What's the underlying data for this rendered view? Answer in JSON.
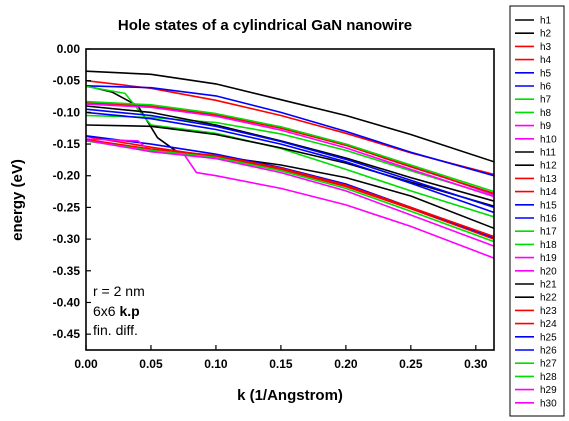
{
  "chart_data": {
    "type": "line",
    "title": "Hole states of a cylindrical GaN nanowire",
    "xlabel": "k (1/Angstrom)",
    "ylabel": "energy (eV)",
    "xlim": [
      0.0,
      0.314
    ],
    "ylim": [
      -0.475,
      0.0
    ],
    "x_ticks": [
      "0.00",
      "0.05",
      "0.10",
      "0.15",
      "0.20",
      "0.25",
      "0.30"
    ],
    "y_ticks": [
      "0.00",
      "-0.05",
      "-0.10",
      "-0.15",
      "-0.20",
      "-0.25",
      "-0.30",
      "-0.35",
      "-0.40",
      "-0.45"
    ],
    "grid": false,
    "legend_position": "right, outside plot",
    "annotation": {
      "line1": "r = 2 nm",
      "line2_prefix": "6x6 ",
      "line2_bold": "k.p",
      "line3": "fin. diff."
    },
    "series": [
      {
        "name": "h1",
        "color": "#000000",
        "x": [
          0.0,
          0.05,
          0.1,
          0.15,
          0.2,
          0.25,
          0.314
        ],
        "y": [
          -0.035,
          -0.04,
          -0.055,
          -0.08,
          -0.105,
          -0.135,
          -0.178
        ]
      },
      {
        "name": "h2",
        "color": "#000000",
        "x": [
          0.0,
          0.02,
          0.04,
          0.055,
          0.07,
          0.1,
          0.15,
          0.2,
          0.25,
          0.314
        ],
        "y": [
          -0.058,
          -0.068,
          -0.09,
          -0.14,
          -0.162,
          -0.169,
          -0.183,
          -0.203,
          -0.232,
          -0.283
        ]
      },
      {
        "name": "h3",
        "color": "#ff0000",
        "x": [
          0.0,
          0.05,
          0.1,
          0.15,
          0.2,
          0.25,
          0.314
        ],
        "y": [
          -0.05,
          -0.062,
          -0.081,
          -0.105,
          -0.133,
          -0.164,
          -0.198
        ]
      },
      {
        "name": "h4",
        "color": "#ff0000",
        "x": [
          0.0,
          0.05,
          0.1,
          0.15,
          0.2,
          0.25,
          0.314
        ],
        "y": [
          -0.138,
          -0.155,
          -0.17,
          -0.19,
          -0.217,
          -0.252,
          -0.3
        ]
      },
      {
        "name": "h5",
        "color": "#0000ff",
        "x": [
          0.0,
          0.05,
          0.1,
          0.15,
          0.2,
          0.25,
          0.314
        ],
        "y": [
          -0.058,
          -0.061,
          -0.074,
          -0.1,
          -0.13,
          -0.163,
          -0.2
        ]
      },
      {
        "name": "h6",
        "color": "#0000ff",
        "x": [
          0.0,
          0.05,
          0.1,
          0.15,
          0.2,
          0.25,
          0.314
        ],
        "y": [
          -0.137,
          -0.15,
          -0.166,
          -0.187,
          -0.213,
          -0.25,
          -0.298
        ]
      },
      {
        "name": "h7",
        "color": "#00dd00",
        "x": [
          0.0,
          0.03,
          0.05,
          0.1,
          0.15,
          0.2,
          0.25,
          0.314
        ],
        "y": [
          -0.059,
          -0.07,
          -0.12,
          -0.133,
          -0.157,
          -0.19,
          -0.224,
          -0.265
        ]
      },
      {
        "name": "h8",
        "color": "#00dd00",
        "x": [
          0.0,
          0.05,
          0.1,
          0.15,
          0.2,
          0.25,
          0.314
        ],
        "y": [
          -0.105,
          -0.108,
          -0.116,
          -0.134,
          -0.16,
          -0.192,
          -0.232
        ]
      },
      {
        "name": "h9",
        "color": "#ff00ff",
        "x": [
          0.0,
          0.05,
          0.1,
          0.15,
          0.2,
          0.25,
          0.314
        ],
        "y": [
          -0.085,
          -0.09,
          -0.103,
          -0.123,
          -0.15,
          -0.184,
          -0.23
        ]
      },
      {
        "name": "h10",
        "color": "#ff00ff",
        "x": [
          0.0,
          0.04,
          0.05,
          0.075,
          0.085,
          0.1,
          0.15,
          0.2,
          0.25,
          0.314
        ],
        "y": [
          -0.142,
          -0.145,
          -0.162,
          -0.165,
          -0.195,
          -0.2,
          -0.22,
          -0.246,
          -0.28,
          -0.33
        ]
      },
      {
        "name": "h11",
        "color": "#000000",
        "x": [
          0.0,
          0.05,
          0.1,
          0.15,
          0.2,
          0.25,
          0.314
        ],
        "y": [
          -0.12,
          -0.122,
          -0.135,
          -0.156,
          -0.18,
          -0.21,
          -0.248
        ]
      },
      {
        "name": "h12",
        "color": "#000000",
        "x": [
          0.0,
          0.05,
          0.1,
          0.15,
          0.2,
          0.25,
          0.314
        ],
        "y": [
          -0.09,
          -0.1,
          -0.12,
          -0.145,
          -0.172,
          -0.203,
          -0.24
        ]
      },
      {
        "name": "h13",
        "color": "#ff0000",
        "x": [
          0.0,
          0.05,
          0.1,
          0.15,
          0.2,
          0.25,
          0.314
        ],
        "y": [
          -0.084,
          -0.09,
          -0.104,
          -0.125,
          -0.152,
          -0.186,
          -0.228
        ]
      },
      {
        "name": "h14",
        "color": "#ff0000",
        "x": [
          0.0,
          0.05,
          0.1,
          0.15,
          0.2,
          0.25,
          0.314
        ],
        "y": [
          -0.143,
          -0.158,
          -0.168,
          -0.188,
          -0.215,
          -0.25,
          -0.296
        ]
      },
      {
        "name": "h15",
        "color": "#0000ff",
        "x": [
          0.0,
          0.05,
          0.1,
          0.15,
          0.2,
          0.25,
          0.314
        ],
        "y": [
          -0.095,
          -0.105,
          -0.122,
          -0.146,
          -0.174,
          -0.207,
          -0.25
        ]
      },
      {
        "name": "h16",
        "color": "#0000ff",
        "x": [
          0.0,
          0.05,
          0.1,
          0.15,
          0.2,
          0.25,
          0.314
        ],
        "y": [
          -0.1,
          -0.11,
          -0.127,
          -0.15,
          -0.178,
          -0.212,
          -0.258
        ]
      },
      {
        "name": "h17",
        "color": "#00dd00",
        "x": [
          0.0,
          0.05,
          0.1,
          0.15,
          0.2,
          0.25,
          0.314
        ],
        "y": [
          -0.083,
          -0.088,
          -0.102,
          -0.123,
          -0.15,
          -0.183,
          -0.225
        ]
      },
      {
        "name": "h18",
        "color": "#00dd00",
        "x": [
          0.0,
          0.05,
          0.1,
          0.15,
          0.2,
          0.25,
          0.314
        ],
        "y": [
          -0.145,
          -0.16,
          -0.171,
          -0.192,
          -0.22,
          -0.256,
          -0.304
        ]
      },
      {
        "name": "h19",
        "color": "#ff00ff",
        "x": [
          0.0,
          0.05,
          0.1,
          0.15,
          0.2,
          0.25,
          0.314
        ],
        "y": [
          -0.144,
          -0.162,
          -0.173,
          -0.195,
          -0.224,
          -0.262,
          -0.311
        ]
      },
      {
        "name": "h20",
        "color": "#ff00ff",
        "x": [
          0.0,
          0.05,
          0.1,
          0.15,
          0.2,
          0.25,
          0.314
        ],
        "y": [
          -0.087,
          -0.092,
          -0.106,
          -0.128,
          -0.156,
          -0.19,
          -0.233
        ]
      },
      {
        "name": "h21",
        "color": "#000000",
        "x": [],
        "y": []
      },
      {
        "name": "h22",
        "color": "#000000",
        "x": [],
        "y": []
      },
      {
        "name": "h23",
        "color": "#ff0000",
        "x": [],
        "y": []
      },
      {
        "name": "h24",
        "color": "#ff0000",
        "x": [],
        "y": []
      },
      {
        "name": "h25",
        "color": "#0000ff",
        "x": [],
        "y": []
      },
      {
        "name": "h26",
        "color": "#0000ff",
        "x": [],
        "y": []
      },
      {
        "name": "h27",
        "color": "#00dd00",
        "x": [],
        "y": []
      },
      {
        "name": "h28",
        "color": "#00dd00",
        "x": [],
        "y": []
      },
      {
        "name": "h29",
        "color": "#ff00ff",
        "x": [],
        "y": []
      },
      {
        "name": "h30",
        "color": "#ff00ff",
        "x": [],
        "y": []
      }
    ]
  }
}
